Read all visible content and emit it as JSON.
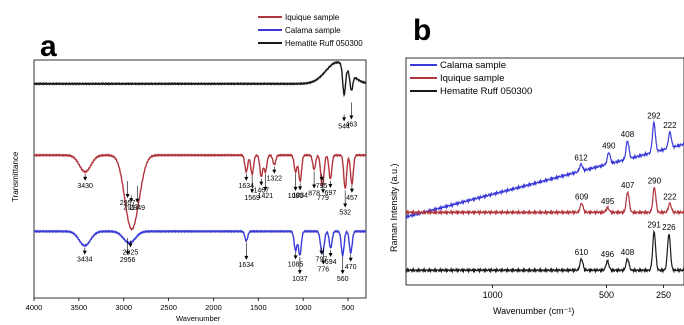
{
  "panel_a": {
    "letter": "a",
    "legend": [
      {
        "label": "Iquique sample",
        "color": "#b2353d"
      },
      {
        "label": "Calama sample",
        "color": "#3a3ad8"
      },
      {
        "label": "Hematite Ruff 050300",
        "color": "#1a1a1a"
      }
    ],
    "xlabel": "Wavenumber",
    "ylabel": "Transmittance"
  },
  "panel_b": {
    "letter": "b",
    "legend": [
      {
        "label": "Calama sample",
        "color": "#3a3ad8"
      },
      {
        "label": "Iquique sample",
        "color": "#b2353d"
      },
      {
        "label": "Hematite Ruff 050300",
        "color": "#1a1a1a"
      }
    ],
    "xlabel": "Wavenumber (cm⁻¹)",
    "ylabel": "Raman Intensity (a.u.)"
  },
  "chart_data": [
    {
      "type": "line",
      "panel": "a",
      "xlabel": "Wavenumber",
      "ylabel": "Transmittance",
      "xlim": [
        4000,
        300
      ],
      "x_ticks": [
        4000,
        3500,
        3000,
        2500,
        2000,
        1500,
        1000,
        500
      ],
      "series": [
        {
          "name": "Hematite Ruff 050300",
          "color": "#1a1a1a",
          "level": 0.9,
          "annotations": [
            {
              "label": "544",
              "x": 544,
              "depth": 0.12
            },
            {
              "label": "463",
              "x": 463,
              "depth": 0.07
            }
          ]
        },
        {
          "name": "Iquique sample",
          "color": "#b2353d",
          "level": 0.6,
          "annotations": [
            {
              "label": "3430",
              "x": 3430,
              "depth": 0.07
            },
            {
              "label": "2957",
              "x": 2957,
              "depth": 0.1
            },
            {
              "label": "2917",
              "x": 2917,
              "depth": 0.16
            },
            {
              "label": "2849",
              "x": 2849,
              "depth": 0.12
            },
            {
              "label": "1634",
              "x": 1634,
              "depth": 0.07
            },
            {
              "label": "1569",
              "x": 1569,
              "depth": 0.08
            },
            {
              "label": "1467",
              "x": 1467,
              "depth": 0.09
            },
            {
              "label": "1421",
              "x": 1421,
              "depth": 0.07
            },
            {
              "label": "1322",
              "x": 1322,
              "depth": 0.04
            },
            {
              "label": "1085",
              "x": 1085,
              "depth": 0.07
            },
            {
              "label": "1034",
              "x": 1034,
              "depth": 0.11
            },
            {
              "label": "878",
              "x": 878,
              "depth": 0.06
            },
            {
              "label": "795",
              "x": 795,
              "depth": 0.07
            },
            {
              "label": "779",
              "x": 779,
              "depth": 0.08
            },
            {
              "label": "697",
              "x": 697,
              "depth": 0.1
            },
            {
              "label": "532",
              "x": 532,
              "depth": 0.14
            },
            {
              "label": "457",
              "x": 457,
              "depth": 0.12
            }
          ]
        },
        {
          "name": "Calama sample",
          "color": "#3a3ad8",
          "level": 0.28,
          "annotations": [
            {
              "label": "3434",
              "x": 3434,
              "depth": 0.06
            },
            {
              "label": "2956",
              "x": 2956,
              "depth": 0.02
            },
            {
              "label": "2925",
              "x": 2925,
              "depth": 0.03
            },
            {
              "label": "1634",
              "x": 1634,
              "depth": 0.04
            },
            {
              "label": "1085",
              "x": 1085,
              "depth": 0.08
            },
            {
              "label": "1037",
              "x": 1037,
              "depth": 0.1
            },
            {
              "label": "797",
              "x": 797,
              "depth": 0.06
            },
            {
              "label": "776",
              "x": 776,
              "depth": 0.06
            },
            {
              "label": "694",
              "x": 694,
              "depth": 0.07
            },
            {
              "label": "560",
              "x": 560,
              "depth": 0.1
            },
            {
              "label": "470",
              "x": 470,
              "depth": 0.09
            }
          ]
        }
      ]
    },
    {
      "type": "line",
      "panel": "b",
      "xlabel": "Wavenumber (cm⁻¹)",
      "ylabel": "Raman Intensity (a.u.)",
      "xlim": [
        1380,
        160
      ],
      "x_ticks": [
        1000,
        500,
        250
      ],
      "series": [
        {
          "name": "Calama sample",
          "color": "#3a3ad8",
          "peaks": [
            {
              "label": "612",
              "x": 612,
              "height": 0.03
            },
            {
              "label": "490",
              "x": 490,
              "height": 0.05
            },
            {
              "label": "408",
              "x": 408,
              "height": 0.08
            },
            {
              "label": "292",
              "x": 292,
              "height": 0.13
            },
            {
              "label": "222",
              "x": 222,
              "height": 0.07
            }
          ]
        },
        {
          "name": "Iquique sample",
          "color": "#b2353d",
          "peaks": [
            {
              "label": "609",
              "x": 609,
              "height": 0.04
            },
            {
              "label": "495",
              "x": 495,
              "height": 0.02
            },
            {
              "label": "407",
              "x": 407,
              "height": 0.09
            },
            {
              "label": "290",
              "x": 290,
              "height": 0.11
            },
            {
              "label": "222",
              "x": 222,
              "height": 0.04
            }
          ]
        },
        {
          "name": "Hematite Ruff 050300",
          "color": "#1a1a1a",
          "peaks": [
            {
              "label": "610",
              "x": 610,
              "height": 0.05
            },
            {
              "label": "496",
              "x": 496,
              "height": 0.04
            },
            {
              "label": "408",
              "x": 408,
              "height": 0.05
            },
            {
              "label": "291",
              "x": 291,
              "height": 0.17
            },
            {
              "label": "226",
              "x": 226,
              "height": 0.16
            }
          ]
        }
      ]
    }
  ]
}
